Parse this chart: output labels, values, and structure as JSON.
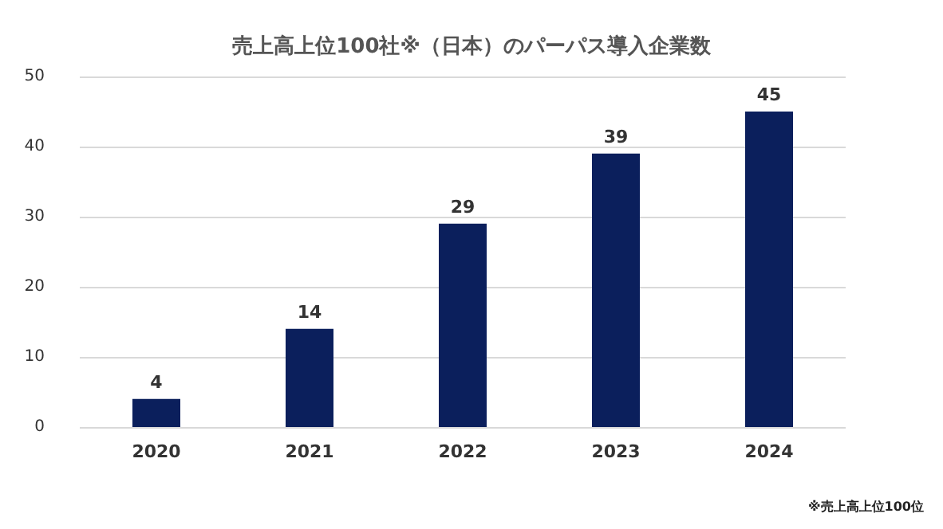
{
  "chart_data": {
    "type": "bar",
    "title": "売上高上位100社※（日本）のパーパス導入企業数",
    "categories": [
      "2020",
      "2021",
      "2022",
      "2023",
      "2024"
    ],
    "values": [
      4,
      14,
      29,
      39,
      45
    ],
    "color": "#0b1f5c",
    "data_labels": true,
    "ylim": [
      0,
      50
    ],
    "yticks": [
      0,
      10,
      20,
      30,
      40,
      50
    ],
    "grid": "y",
    "annotations": [
      "※売上高上位100位"
    ]
  }
}
